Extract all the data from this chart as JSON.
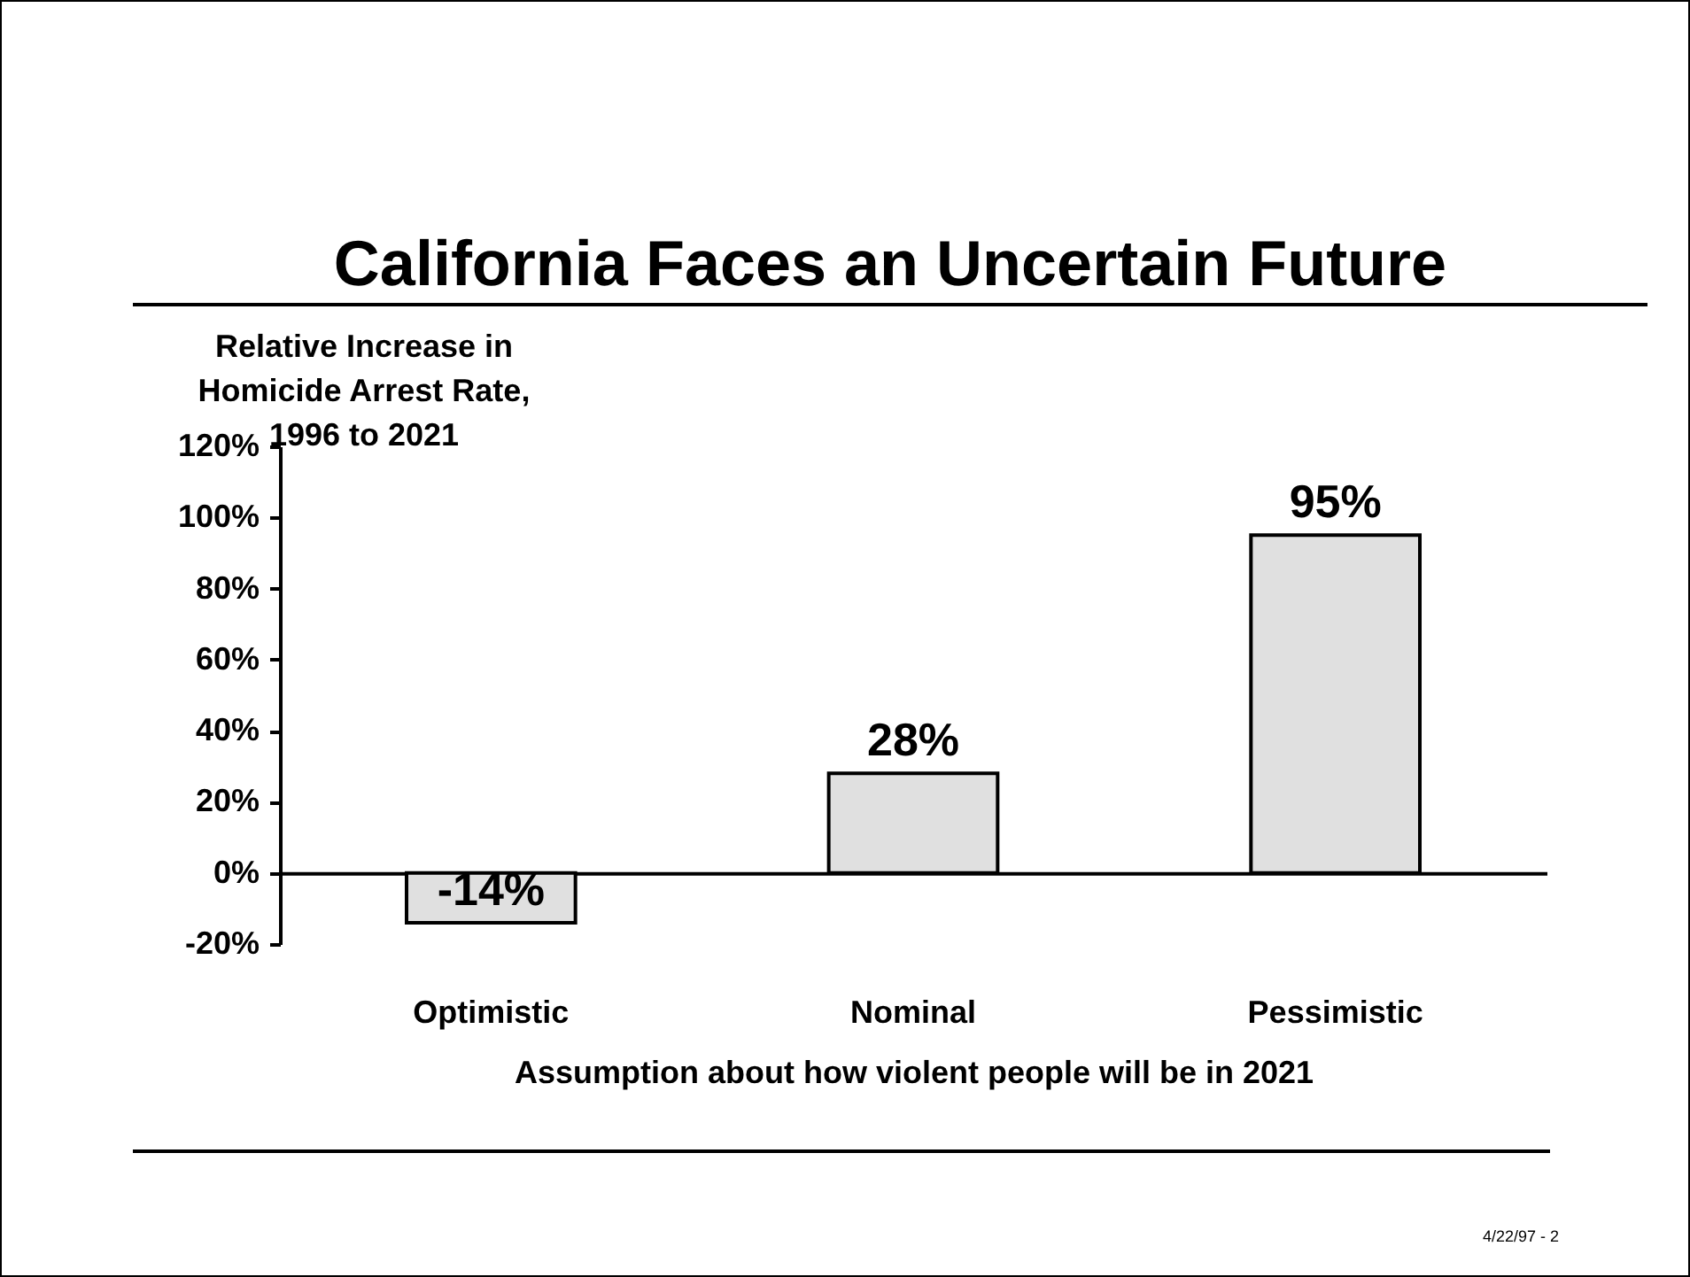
{
  "chart_data": {
    "type": "bar",
    "title": "California Faces an Uncertain Future",
    "xlabel": "Assumption about how violent people will be in 2021",
    "ylabel": "Relative Increase in Homicide Arrest Rate, 1996 to 2021",
    "categories": [
      "Optimistic",
      "Nominal",
      "Pessimistic"
    ],
    "values": [
      -14,
      28,
      95
    ],
    "value_labels": [
      "-14%",
      "28%",
      "95%"
    ],
    "color": "#e0e0e0",
    "ylim": [
      -20,
      120
    ],
    "yticks": [
      {
        "value": -20,
        "label": "-20%"
      },
      {
        "value": 0,
        "label": "0%"
      },
      {
        "value": 20,
        "label": "20%"
      },
      {
        "value": 40,
        "label": "40%"
      },
      {
        "value": 60,
        "label": "60%"
      },
      {
        "value": 80,
        "label": "80%"
      },
      {
        "value": 100,
        "label": "100%"
      },
      {
        "value": 120,
        "label": "120%"
      }
    ],
    "annotations": [
      "4/22/97 - 2"
    ]
  }
}
